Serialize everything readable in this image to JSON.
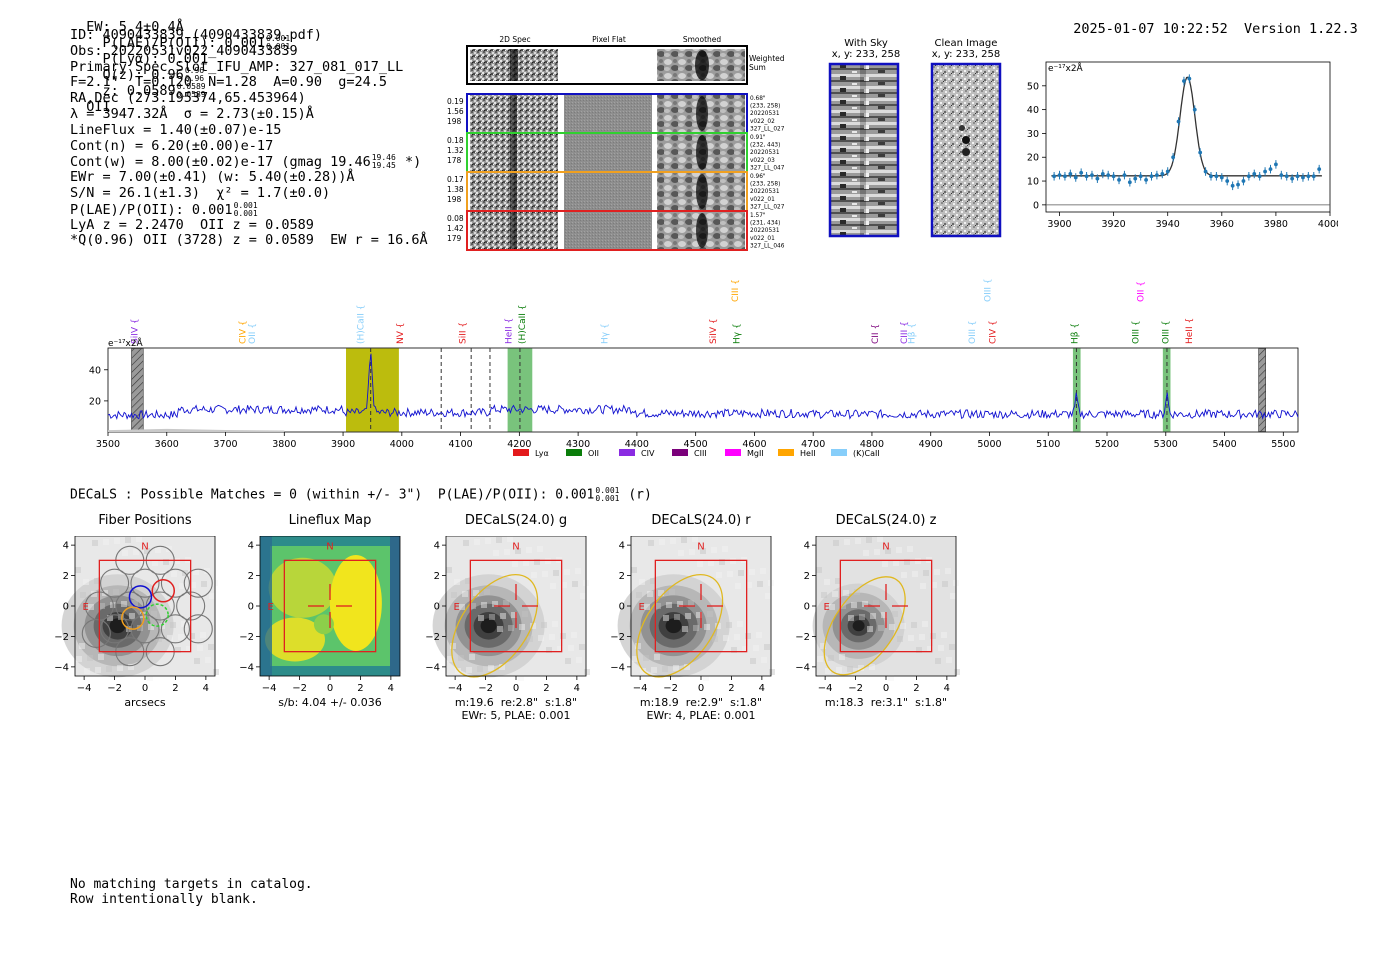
{
  "header": {
    "ew_text": "EW: 5.4±0.4Å",
    "plae_label": "P(LAE)/P(OII): 0.001",
    "plae_hi": "0.001",
    "plae_lo": "0.001",
    "plya_text": "P(Lyα): 0.001",
    "q_label": "Q(z): 0.96",
    "q_hi": "0.96",
    "q_lo": "0.96",
    "z_label": "z: 0.0589",
    "z_hi": "0.0589",
    "z_lo": "0.0589",
    "line_name": "OII",
    "timestamp": "2025-01-07 10:22:52",
    "version": "Version 1.22.3"
  },
  "info": {
    "id": "ID: 4090433839 (4090433839.pdf)",
    "obs": "Obs: 20220531v022_4090433839",
    "primary": "Primary Spec_Slot_IFU_AMP: 327_081_017_LL",
    "fit": "F=2.1\"  T=0.120  N=1.28  A=0.90  g=24.5",
    "radec": "RA,Dec (273.195374,65.453964)",
    "lambda": "λ = 3947.32Å  σ = 2.73(±0.15)Å",
    "lineflux": "LineFlux = 1.40(±0.07)e-15",
    "contn": "Cont(n) = 6.20(±0.00)e-17",
    "contw": "Cont(w) = 8.00(±0.02)e-17 (gmag 19.46",
    "contw_hi": "19.46",
    "contw_lo": "19.45",
    "contw_end": "*)",
    "ewr": "EWr = 7.00(±0.41) (w: 5.40(±0.28))Å",
    "sn": "S/N = 26.1(±1.3)  χ² = 1.7(±0.0)",
    "plae": "P(LAE)/P(OII): 0.001",
    "plae_hi": "0.001",
    "plae_lo": "0.001",
    "lya": "LyA z = 2.2470  OII z = 0.0589",
    "q": "*Q(0.96) OII (3728) z = 0.0589  EW r = 16.6Å"
  },
  "spec2d": {
    "col_labels": [
      "2D Spec",
      "Pixel Flat",
      "Smoothed"
    ],
    "weighted_sum": "Weighted\nSum",
    "rows": [
      {
        "left": [
          "0.19",
          "1.56",
          "198"
        ],
        "color": "#1010c0",
        "right": [
          "0.68\"",
          "(233, 258)",
          "20220531",
          "v022_02",
          "327_LL_027"
        ]
      },
      {
        "left": [
          "0.18",
          "1.32",
          "178"
        ],
        "color": "#30d030",
        "right": [
          "0.91\"",
          "(232, 443)",
          "20220531",
          "v022_03",
          "327_LL_047"
        ]
      },
      {
        "left": [
          "0.17",
          "1.38",
          "198"
        ],
        "color": "#f0a020",
        "right": [
          "0.96\"",
          "(233, 258)",
          "20220531",
          "v022_01",
          "327_LL_027"
        ]
      },
      {
        "left": [
          "0.08",
          "1.42",
          "179"
        ],
        "color": "#e02020",
        "right": [
          "1.57\"",
          "(231, 434)",
          "20220531",
          "v022_01",
          "327_LL_046"
        ]
      }
    ]
  },
  "sky_panels": {
    "with_sky_title": "With Sky",
    "with_sky_coords": "x, y: 233, 258",
    "clean_title": "Clean Image",
    "clean_coords": "x, y: 233, 258"
  },
  "colors": {
    "blue": "#1010d0",
    "lya": "#e31a1c",
    "oii": "#0a7d0a",
    "civ": "#8a2be2",
    "ciii": "#7b007b",
    "mgii": "#ff00ff",
    "heii": "#ffa500",
    "kcaii": "#87cefa",
    "olive": "#b8b800",
    "green_band": "#4caf50"
  },
  "chart_data": [
    {
      "type": "line",
      "title": "",
      "ylabel": "e⁻¹⁷x2Å",
      "xlim": [
        3895,
        4000
      ],
      "ylim": [
        -3,
        60
      ],
      "xticks": [
        3900,
        3920,
        3940,
        3960,
        3980,
        4000
      ],
      "yticks": [
        0,
        10,
        20,
        30,
        40,
        50
      ],
      "model": {
        "center": 3947.3,
        "sigma": 2.73,
        "amplitude": 41.5,
        "continuum": 12.2
      },
      "points_x": [
        3898,
        3900,
        3902,
        3904,
        3906,
        3908,
        3910,
        3912,
        3914,
        3916,
        3918,
        3920,
        3922,
        3924,
        3926,
        3928,
        3930,
        3932,
        3934,
        3936,
        3938,
        3940,
        3942,
        3944,
        3946,
        3948,
        3950,
        3952,
        3954,
        3956,
        3958,
        3960,
        3962,
        3964,
        3966,
        3968,
        3970,
        3972,
        3974,
        3976,
        3978,
        3980,
        3982,
        3984,
        3986,
        3988,
        3990,
        3992,
        3994,
        3996
      ],
      "points_y": [
        12,
        12.5,
        12,
        13,
        11.5,
        13.5,
        12,
        12.5,
        11,
        13,
        12.5,
        12,
        10.5,
        12.5,
        9.5,
        11,
        12,
        10.5,
        12,
        12.5,
        13,
        14,
        20,
        35,
        52,
        53,
        40,
        22,
        14,
        12,
        12,
        11.5,
        10,
        8,
        8.5,
        10,
        12,
        13,
        12,
        14,
        15,
        17,
        12.5,
        12,
        11,
        12,
        11.5,
        12,
        12,
        15
      ]
    },
    {
      "type": "line",
      "title": "",
      "ylabel": "e⁻¹⁷x2Å",
      "xlim": [
        3500,
        5525
      ],
      "ylim": [
        0,
        54
      ],
      "xticks": [
        3500,
        3600,
        3700,
        3800,
        3900,
        4000,
        4100,
        4200,
        4300,
        4400,
        4500,
        4600,
        4700,
        4800,
        4900,
        5000,
        5100,
        5200,
        5300,
        5400,
        5500
      ],
      "yticks": [
        20,
        40
      ],
      "emission_peaks": [
        {
          "x": 3947,
          "y": 49
        },
        {
          "x": 5148,
          "y": 23
        },
        {
          "x": 5302,
          "y": 25
        }
      ],
      "continuum": 13,
      "highlight_bands": [
        {
          "from": 3905,
          "to": 3995,
          "color": "olive"
        },
        {
          "from": 4180,
          "to": 4222,
          "color": "green"
        },
        {
          "from": 5142,
          "to": 5155,
          "color": "green"
        },
        {
          "from": 5295,
          "to": 5308,
          "color": "green"
        }
      ],
      "hatched_bands": [
        {
          "from": 3540,
          "to": 3560
        },
        {
          "from": 5458,
          "to": 5470
        }
      ],
      "dashed_lines": [
        3947,
        4067,
        4118,
        4150,
        4201,
        5148,
        5302
      ],
      "line_labels": [
        {
          "x": 3550,
          "label": "SiIV",
          "color": "civ",
          "high": false
        },
        {
          "x": 3734,
          "label": "CIV",
          "color": "heii",
          "high": false
        },
        {
          "x": 3750,
          "label": "OII",
          "color": "kcaii",
          "high": false
        },
        {
          "x": 3935,
          "label": "(H)CaII",
          "color": "kcaii",
          "high": false
        },
        {
          "x": 4002,
          "label": "NV",
          "color": "lya",
          "high": false
        },
        {
          "x": 4108,
          "label": "SiII",
          "color": "lya",
          "high": false
        },
        {
          "x": 4187,
          "label": "HeII",
          "color": "civ",
          "high": false
        },
        {
          "x": 4210,
          "label": "(H)CaII",
          "color": "oii",
          "high": false
        },
        {
          "x": 4350,
          "label": "Hγ",
          "color": "kcaii",
          "high": false
        },
        {
          "x": 4535,
          "label": "SiIV",
          "color": "lya",
          "high": false
        },
        {
          "x": 4572,
          "label": "CIII",
          "color": "heii",
          "high": true
        },
        {
          "x": 4575,
          "label": "Hγ",
          "color": "oii",
          "high": false
        },
        {
          "x": 4810,
          "label": "CII",
          "color": "ciii",
          "high": false
        },
        {
          "x": 4860,
          "label": "CIII",
          "color": "civ",
          "high": false
        },
        {
          "x": 4872,
          "label": "Hβ",
          "color": "kcaii",
          "high": false
        },
        {
          "x": 4975,
          "label": "OIII",
          "color": "kcaii",
          "high": false
        },
        {
          "x": 5002,
          "label": "OIII",
          "color": "kcaii",
          "high": true
        },
        {
          "x": 5010,
          "label": "CIV",
          "color": "lya",
          "high": false
        },
        {
          "x": 5150,
          "label": "Hβ",
          "color": "oii",
          "high": false
        },
        {
          "x": 5254,
          "label": "OIII",
          "color": "oii",
          "high": false
        },
        {
          "x": 5262,
          "label": "OII",
          "color": "mgii",
          "high": true
        },
        {
          "x": 5305,
          "label": "OIII",
          "color": "oii",
          "high": false
        },
        {
          "x": 5345,
          "label": "HeII",
          "color": "lya",
          "high": false
        }
      ],
      "legend": [
        {
          "label": "Lyα",
          "color": "lya"
        },
        {
          "label": "OII",
          "color": "oii"
        },
        {
          "label": "CIV",
          "color": "civ"
        },
        {
          "label": "CIII",
          "color": "ciii"
        },
        {
          "label": "MgII",
          "color": "mgii"
        },
        {
          "label": "HeII",
          "color": "heii"
        },
        {
          "label": "(K)CaII",
          "color": "kcaii"
        }
      ]
    }
  ],
  "decals": {
    "summary_a": "DECaLS : Possible Matches = 0 (within +/- 3\")  P(LAE)/P(OII): 0.001",
    "summary_hi": "0.001",
    "summary_lo": "0.001",
    "summary_b": "(r)",
    "axis_ticks": [
      "-4",
      "-2",
      "0",
      "2",
      "4"
    ],
    "north": "N",
    "east": "E",
    "panels": [
      {
        "title": "Fiber Positions",
        "caption1": "arcsecs",
        "caption2": ""
      },
      {
        "title": "Lineflux Map",
        "caption1": "s/b: 4.04 +/- 0.036",
        "caption2": ""
      },
      {
        "title": "DECaLS(24.0) g",
        "caption1": "m:19.6  re:2.8\"  s:1.8\"",
        "caption2": "EWr: 5, PLAE: 0.001"
      },
      {
        "title": "DECaLS(24.0) r",
        "caption1": "m:18.9  re:2.9\"  s:1.8\"",
        "caption2": "EWr: 4, PLAE: 0.001"
      },
      {
        "title": "DECaLS(24.0) z",
        "caption1": "m:18.3  re:3.1\"  s:1.8\"",
        "caption2": ""
      }
    ]
  },
  "footer": {
    "line1": "No matching targets in catalog.",
    "line2": "Row intentionally blank."
  }
}
